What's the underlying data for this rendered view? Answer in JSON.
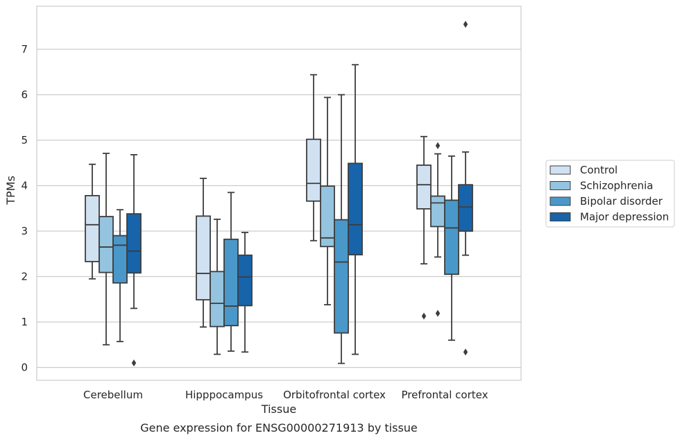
{
  "chart_data": {
    "type": "box",
    "xlabel": "Tissue",
    "ylabel": "TPMs",
    "caption": "Gene expression for ENSG00000271913 by tissue",
    "ylim": [
      -0.3,
      7.9
    ],
    "yticks": [
      "0",
      "1",
      "2",
      "3",
      "4",
      "5",
      "6",
      "7"
    ],
    "grid": "horizontal",
    "legend_position": "right",
    "categories": [
      "Cerebellum",
      "Hipppocampus",
      "Orbitofrontal cortex",
      "Prefrontal cortex"
    ],
    "series": [
      {
        "name": "Control",
        "color": "#d0e1f2",
        "boxes": [
          {
            "whislo": 1.95,
            "q1": 2.33,
            "med": 3.14,
            "q3": 3.78,
            "whishi": 4.47,
            "fliers": []
          },
          {
            "whislo": 0.89,
            "q1": 1.49,
            "med": 2.07,
            "q3": 3.33,
            "whishi": 4.16,
            "fliers": []
          },
          {
            "whislo": 2.79,
            "q1": 3.66,
            "med": 4.05,
            "q3": 5.02,
            "whishi": 6.44,
            "fliers": []
          },
          {
            "whislo": 2.28,
            "q1": 3.49,
            "med": 4.02,
            "q3": 4.45,
            "whishi": 5.08,
            "fliers": [
              1.13
            ]
          }
        ]
      },
      {
        "name": "Schizophrenia",
        "color": "#94c4df",
        "boxes": [
          {
            "whislo": 0.5,
            "q1": 2.09,
            "med": 2.65,
            "q3": 3.32,
            "whishi": 4.71,
            "fliers": []
          },
          {
            "whislo": 0.29,
            "q1": 0.9,
            "med": 1.41,
            "q3": 2.11,
            "whishi": 3.26,
            "fliers": []
          },
          {
            "whislo": 1.38,
            "q1": 2.66,
            "med": 2.85,
            "q3": 3.99,
            "whishi": 5.94,
            "fliers": []
          },
          {
            "whislo": 2.43,
            "q1": 3.1,
            "med": 3.62,
            "q3": 3.77,
            "whishi": 4.7,
            "fliers": [
              1.19,
              4.88
            ]
          }
        ]
      },
      {
        "name": "Bipolar disorder",
        "color": "#4a98c9",
        "boxes": [
          {
            "whislo": 0.57,
            "q1": 1.86,
            "med": 2.69,
            "q3": 2.9,
            "whishi": 3.47,
            "fliers": []
          },
          {
            "whislo": 0.36,
            "q1": 0.92,
            "med": 1.35,
            "q3": 2.82,
            "whishi": 3.85,
            "fliers": []
          },
          {
            "whislo": 0.09,
            "q1": 0.76,
            "med": 2.32,
            "q3": 3.25,
            "whishi": 6.0,
            "fliers": []
          },
          {
            "whislo": 0.6,
            "q1": 2.05,
            "med": 3.07,
            "q3": 3.68,
            "whishi": 4.65,
            "fliers": []
          }
        ]
      },
      {
        "name": "Major depression",
        "color": "#1764ab",
        "boxes": [
          {
            "whislo": 1.3,
            "q1": 2.08,
            "med": 2.56,
            "q3": 3.38,
            "whishi": 4.68,
            "fliers": [
              0.1
            ]
          },
          {
            "whislo": 0.34,
            "q1": 1.36,
            "med": 1.99,
            "q3": 2.47,
            "whishi": 2.97,
            "fliers": []
          },
          {
            "whislo": 0.29,
            "q1": 2.48,
            "med": 3.14,
            "q3": 4.49,
            "whishi": 6.66,
            "fliers": []
          },
          {
            "whislo": 2.47,
            "q1": 3.0,
            "med": 3.53,
            "q3": 4.02,
            "whishi": 4.74,
            "fliers": [
              0.34,
              7.55
            ]
          }
        ]
      }
    ]
  }
}
